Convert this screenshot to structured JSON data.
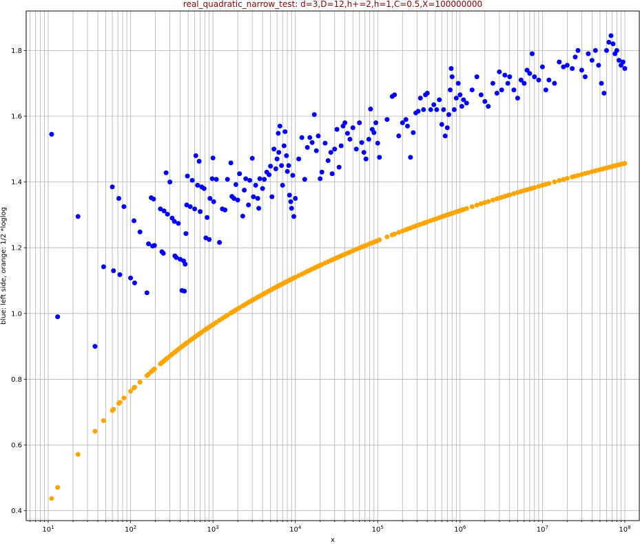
{
  "chart_data": {
    "type": "scatter",
    "title": "real_quadratic_narrow_test: d=3,D=12,h+=2,h=1,C=0.5,X=100000000",
    "xlabel": "x",
    "ylabel": "blue: left side, orange: 1/2 *loglog",
    "x_scale": "log",
    "xlim": [
      5.4,
      150000000.0
    ],
    "ylim": [
      0.37,
      1.92
    ],
    "x_ticks": [
      {
        "base": "10",
        "exp": "1",
        "value": 10
      },
      {
        "base": "10",
        "exp": "2",
        "value": 100
      },
      {
        "base": "10",
        "exp": "3",
        "value": 1000
      },
      {
        "base": "10",
        "exp": "4",
        "value": 10000
      },
      {
        "base": "10",
        "exp": "5",
        "value": 100000
      },
      {
        "base": "10",
        "exp": "6",
        "value": 1000000
      },
      {
        "base": "10",
        "exp": "7",
        "value": 10000000
      },
      {
        "base": "10",
        "exp": "8",
        "value": 100000000
      }
    ],
    "y_ticks": [
      "0.4",
      "0.6",
      "0.8",
      "1.0",
      "1.2",
      "1.4",
      "1.6",
      "1.8"
    ],
    "y_tick_values": [
      0.4,
      0.6,
      0.8,
      1.0,
      1.2,
      1.4,
      1.6,
      1.8
    ],
    "grid": true,
    "legend": "none",
    "series": [
      {
        "color": "#0000ff",
        "marker": "circle",
        "points": [
          [
            11,
            1.545
          ],
          [
            13,
            0.99
          ],
          [
            23,
            1.295
          ],
          [
            37,
            0.9
          ],
          [
            47,
            1.142
          ],
          [
            60,
            1.385
          ],
          [
            62,
            1.13
          ],
          [
            72,
            1.35
          ],
          [
            74,
            1.118
          ],
          [
            83,
            1.325
          ],
          [
            100,
            1.108
          ],
          [
            110,
            1.282
          ],
          [
            112,
            1.093
          ],
          [
            130,
            1.248
          ],
          [
            158,
            1.063
          ],
          [
            165,
            1.212
          ],
          [
            178,
            1.352
          ],
          [
            185,
            1.205
          ],
          [
            190,
            1.348
          ],
          [
            195,
            1.207
          ],
          [
            230,
            1.318
          ],
          [
            240,
            1.188
          ],
          [
            250,
            1.183
          ],
          [
            255,
            1.312
          ],
          [
            270,
            1.428
          ],
          [
            280,
            1.302
          ],
          [
            300,
            1.4
          ],
          [
            320,
            1.29
          ],
          [
            340,
            1.28
          ],
          [
            345,
            1.175
          ],
          [
            360,
            1.17
          ],
          [
            380,
            1.274
          ],
          [
            400,
            1.165
          ],
          [
            420,
            1.07
          ],
          [
            440,
            1.16
          ],
          [
            450,
            1.068
          ],
          [
            460,
            1.15
          ],
          [
            470,
            1.243
          ],
          [
            480,
            1.33
          ],
          [
            490,
            1.418
          ],
          [
            530,
            1.325
          ],
          [
            560,
            1.405
          ],
          [
            600,
            1.318
          ],
          [
            620,
            1.48
          ],
          [
            650,
            1.39
          ],
          [
            680,
            1.463
          ],
          [
            700,
            1.31
          ],
          [
            730,
            1.385
          ],
          [
            780,
            1.38
          ],
          [
            820,
            1.23
          ],
          [
            850,
            1.292
          ],
          [
            900,
            1.225
          ],
          [
            920,
            1.35
          ],
          [
            980,
            1.41
          ],
          [
            1000,
            1.473
          ],
          [
            1020,
            1.34
          ],
          [
            1100,
            1.408
          ],
          [
            1200,
            1.216
          ],
          [
            1300,
            1.318
          ],
          [
            1400,
            1.315
          ],
          [
            1500,
            1.408
          ],
          [
            1650,
            1.458
          ],
          [
            1700,
            1.356
          ],
          [
            1800,
            1.35
          ],
          [
            1900,
            1.392
          ],
          [
            2000,
            1.345
          ],
          [
            2100,
            1.425
          ],
          [
            2300,
            1.296
          ],
          [
            2400,
            1.375
          ],
          [
            2500,
            1.41
          ],
          [
            2700,
            1.33
          ],
          [
            2800,
            1.405
          ],
          [
            3000,
            1.472
          ],
          [
            3100,
            1.355
          ],
          [
            3300,
            1.39
          ],
          [
            3500,
            1.35
          ],
          [
            3600,
            1.32
          ],
          [
            3700,
            1.41
          ],
          [
            4000,
            1.38
          ],
          [
            4200,
            1.408
          ],
          [
            4500,
            1.43
          ],
          [
            4800,
            1.422
          ],
          [
            5000,
            1.448
          ],
          [
            5200,
            1.355
          ],
          [
            5500,
            1.5
          ],
          [
            5800,
            1.44
          ],
          [
            6000,
            1.47
          ],
          [
            6200,
            1.548
          ],
          [
            6300,
            1.49
          ],
          [
            6500,
            1.57
          ],
          [
            6800,
            1.45
          ],
          [
            7000,
            1.39
          ],
          [
            7300,
            1.51
          ],
          [
            7500,
            1.553
          ],
          [
            7800,
            1.48
          ],
          [
            8000,
            1.432
          ],
          [
            8300,
            1.45
          ],
          [
            8500,
            1.36
          ],
          [
            8800,
            1.34
          ],
          [
            9000,
            1.32
          ],
          [
            9300,
            1.42
          ],
          [
            9600,
            1.295
          ],
          [
            10000,
            1.35
          ],
          [
            11000,
            1.47
          ],
          [
            12000,
            1.535
          ],
          [
            13000,
            1.408
          ],
          [
            14000,
            1.505
          ],
          [
            15000,
            1.535
          ],
          [
            16000,
            1.52
          ],
          [
            17000,
            1.605
          ],
          [
            18000,
            1.495
          ],
          [
            19000,
            1.54
          ],
          [
            20000,
            1.41
          ],
          [
            21000,
            1.43
          ],
          [
            23000,
            1.518
          ],
          [
            25000,
            1.465
          ],
          [
            27000,
            1.49
          ],
          [
            28000,
            1.425
          ],
          [
            30000,
            1.5
          ],
          [
            32000,
            1.56
          ],
          [
            34000,
            1.445
          ],
          [
            36000,
            1.51
          ],
          [
            38000,
            1.57
          ],
          [
            40000,
            1.58
          ],
          [
            43000,
            1.548
          ],
          [
            46000,
            1.53
          ],
          [
            50000,
            1.565
          ],
          [
            55000,
            1.5
          ],
          [
            60000,
            1.58
          ],
          [
            64000,
            1.52
          ],
          [
            68000,
            1.49
          ],
          [
            72000,
            1.47
          ],
          [
            78000,
            1.53
          ],
          [
            82000,
            1.622
          ],
          [
            86000,
            1.56
          ],
          [
            90000,
            1.55
          ],
          [
            95000,
            1.58
          ],
          [
            100000,
            1.518
          ],
          [
            105000,
            1.475
          ],
          [
            130000,
            1.59
          ],
          [
            150000,
            1.66
          ],
          [
            160000,
            1.665
          ],
          [
            180000,
            1.54
          ],
          [
            200000,
            1.58
          ],
          [
            220000,
            1.59
          ],
          [
            230000,
            1.57
          ],
          [
            250000,
            1.475
          ],
          [
            270000,
            1.55
          ],
          [
            290000,
            1.61
          ],
          [
            310000,
            1.615
          ],
          [
            330000,
            1.655
          ],
          [
            360000,
            1.62
          ],
          [
            380000,
            1.665
          ],
          [
            400000,
            1.67
          ],
          [
            440000,
            1.62
          ],
          [
            480000,
            1.635
          ],
          [
            520000,
            1.62
          ],
          [
            560000,
            1.65
          ],
          [
            600000,
            1.575
          ],
          [
            630000,
            1.62
          ],
          [
            660000,
            1.54
          ],
          [
            700000,
            1.565
          ],
          [
            730000,
            1.605
          ],
          [
            760000,
            1.68
          ],
          [
            780000,
            1.745
          ],
          [
            800000,
            1.72
          ],
          [
            850000,
            1.62
          ],
          [
            900000,
            1.655
          ],
          [
            950000,
            1.7
          ],
          [
            1000000,
            1.665
          ],
          [
            1050000,
            1.63
          ],
          [
            1100000,
            1.65
          ],
          [
            1200000,
            1.64
          ],
          [
            1400000,
            1.68
          ],
          [
            1600000,
            1.72
          ],
          [
            1800000,
            1.665
          ],
          [
            2000000,
            1.645
          ],
          [
            2200000,
            1.63
          ],
          [
            2500000,
            1.7
          ],
          [
            2800000,
            1.67
          ],
          [
            3000000,
            1.735
          ],
          [
            3200000,
            1.68
          ],
          [
            3500000,
            1.725
          ],
          [
            3800000,
            1.7
          ],
          [
            4000000,
            1.72
          ],
          [
            4500000,
            1.68
          ],
          [
            5000000,
            1.655
          ],
          [
            5500000,
            1.71
          ],
          [
            6000000,
            1.7
          ],
          [
            6500000,
            1.74
          ],
          [
            7000000,
            1.73
          ],
          [
            7500000,
            1.79
          ],
          [
            8000000,
            1.72
          ],
          [
            9000000,
            1.71
          ],
          [
            10000000,
            1.75
          ],
          [
            11000000,
            1.68
          ],
          [
            12000000,
            1.71
          ],
          [
            14000000,
            1.7
          ],
          [
            16000000,
            1.765
          ],
          [
            18000000,
            1.75
          ],
          [
            20000000,
            1.755
          ],
          [
            23000000,
            1.745
          ],
          [
            25000000,
            1.78
          ],
          [
            27000000,
            1.8
          ],
          [
            30000000,
            1.74
          ],
          [
            33000000,
            1.72
          ],
          [
            36000000,
            1.79
          ],
          [
            40000000,
            1.77
          ],
          [
            44000000,
            1.8
          ],
          [
            48000000,
            1.755
          ],
          [
            52000000,
            1.7
          ],
          [
            56000000,
            1.67
          ],
          [
            60000000,
            1.8
          ],
          [
            64000000,
            1.825
          ],
          [
            68000000,
            1.845
          ],
          [
            72000000,
            1.82
          ],
          [
            76000000,
            1.79
          ],
          [
            80000000,
            1.8
          ],
          [
            85000000,
            1.77
          ],
          [
            90000000,
            1.755
          ],
          [
            95000000,
            1.765
          ],
          [
            100000000,
            1.745
          ]
        ]
      },
      {
        "color": "#ffa500",
        "marker": "circle",
        "formula": "0.5*ln(ln(x))"
      }
    ]
  }
}
